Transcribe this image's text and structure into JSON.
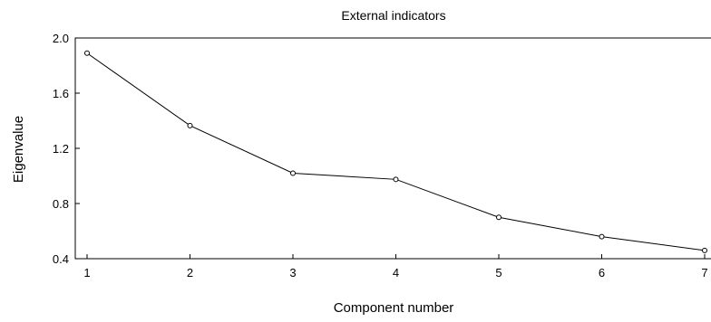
{
  "chart_data": {
    "type": "line",
    "title": "External indicators",
    "xlabel": "Component number",
    "ylabel": "Eigenvalue",
    "x": [
      1,
      2,
      3,
      4,
      5,
      6,
      7
    ],
    "series": [
      {
        "values": [
          1.89,
          1.365,
          1.02,
          0.975,
          0.7,
          0.56,
          0.46
        ]
      }
    ],
    "xlim": [
      1,
      7
    ],
    "ylim": [
      0.4,
      2.0
    ],
    "xticks": [
      "1",
      "2",
      "3",
      "4",
      "5",
      "6",
      "7"
    ],
    "yticks": [
      "0.4",
      "0.8",
      "1.2",
      "1.6",
      "2.0"
    ],
    "grid": false,
    "marker": "open-circle",
    "line_color": "#000000"
  }
}
